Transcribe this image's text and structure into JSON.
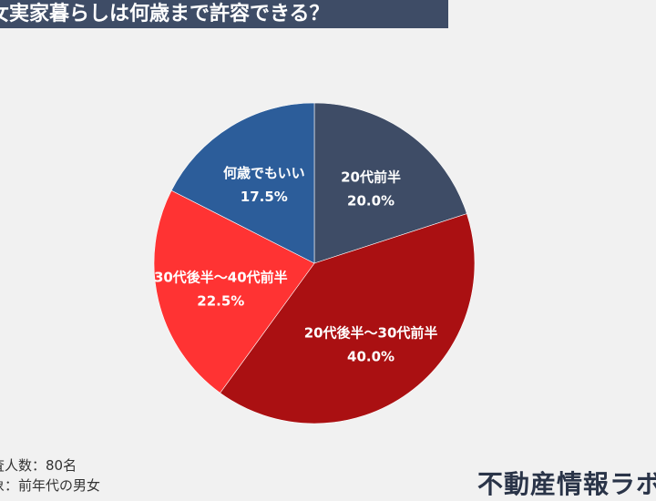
{
  "header": {
    "title": "女実家暮らしは何歳まで許容できる？"
  },
  "chart_data": {
    "type": "pie",
    "start_angle_deg": 0,
    "direction": "clockwise",
    "slices": [
      {
        "label": "20代前半",
        "value": 20.0,
        "display": "20.0%",
        "color": "#3e4c66"
      },
      {
        "label": "20代後半～30代前半",
        "value": 40.0,
        "display": "40.0%",
        "color": "#aa1012"
      },
      {
        "label": "30代後半～40代前半",
        "value": 22.5,
        "display": "22.5%",
        "color": "#ff3333"
      },
      {
        "label": "何歳でもいい",
        "value": 17.5,
        "display": "17.5%",
        "color": "#2c5d9a"
      }
    ]
  },
  "footnotes": {
    "line1": "査人数：80名",
    "line2": "象：前年代の男女"
  },
  "brand": {
    "name": "不動産情報ラボ"
  }
}
